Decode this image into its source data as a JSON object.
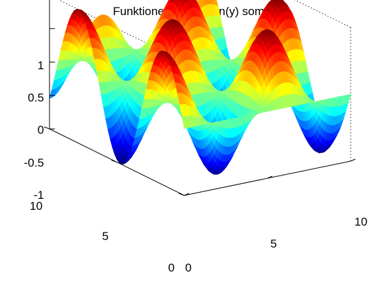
{
  "chart_data": {
    "type": "surface",
    "title": "Funktionen cos(x)*sin(y) som yta",
    "function": "cos(x)*sin(y)",
    "xlim": [
      0,
      10
    ],
    "ylim": [
      0,
      10
    ],
    "zlim": [
      -1,
      1
    ],
    "x_ticks": [
      "0",
      "5",
      "10"
    ],
    "y_ticks": [
      "0",
      "5",
      "10"
    ],
    "z_ticks": [
      "-1",
      "-0.5",
      "0",
      "0.5",
      "1"
    ],
    "colormap": "jet",
    "shading": "interp",
    "box": true,
    "grid": false
  }
}
